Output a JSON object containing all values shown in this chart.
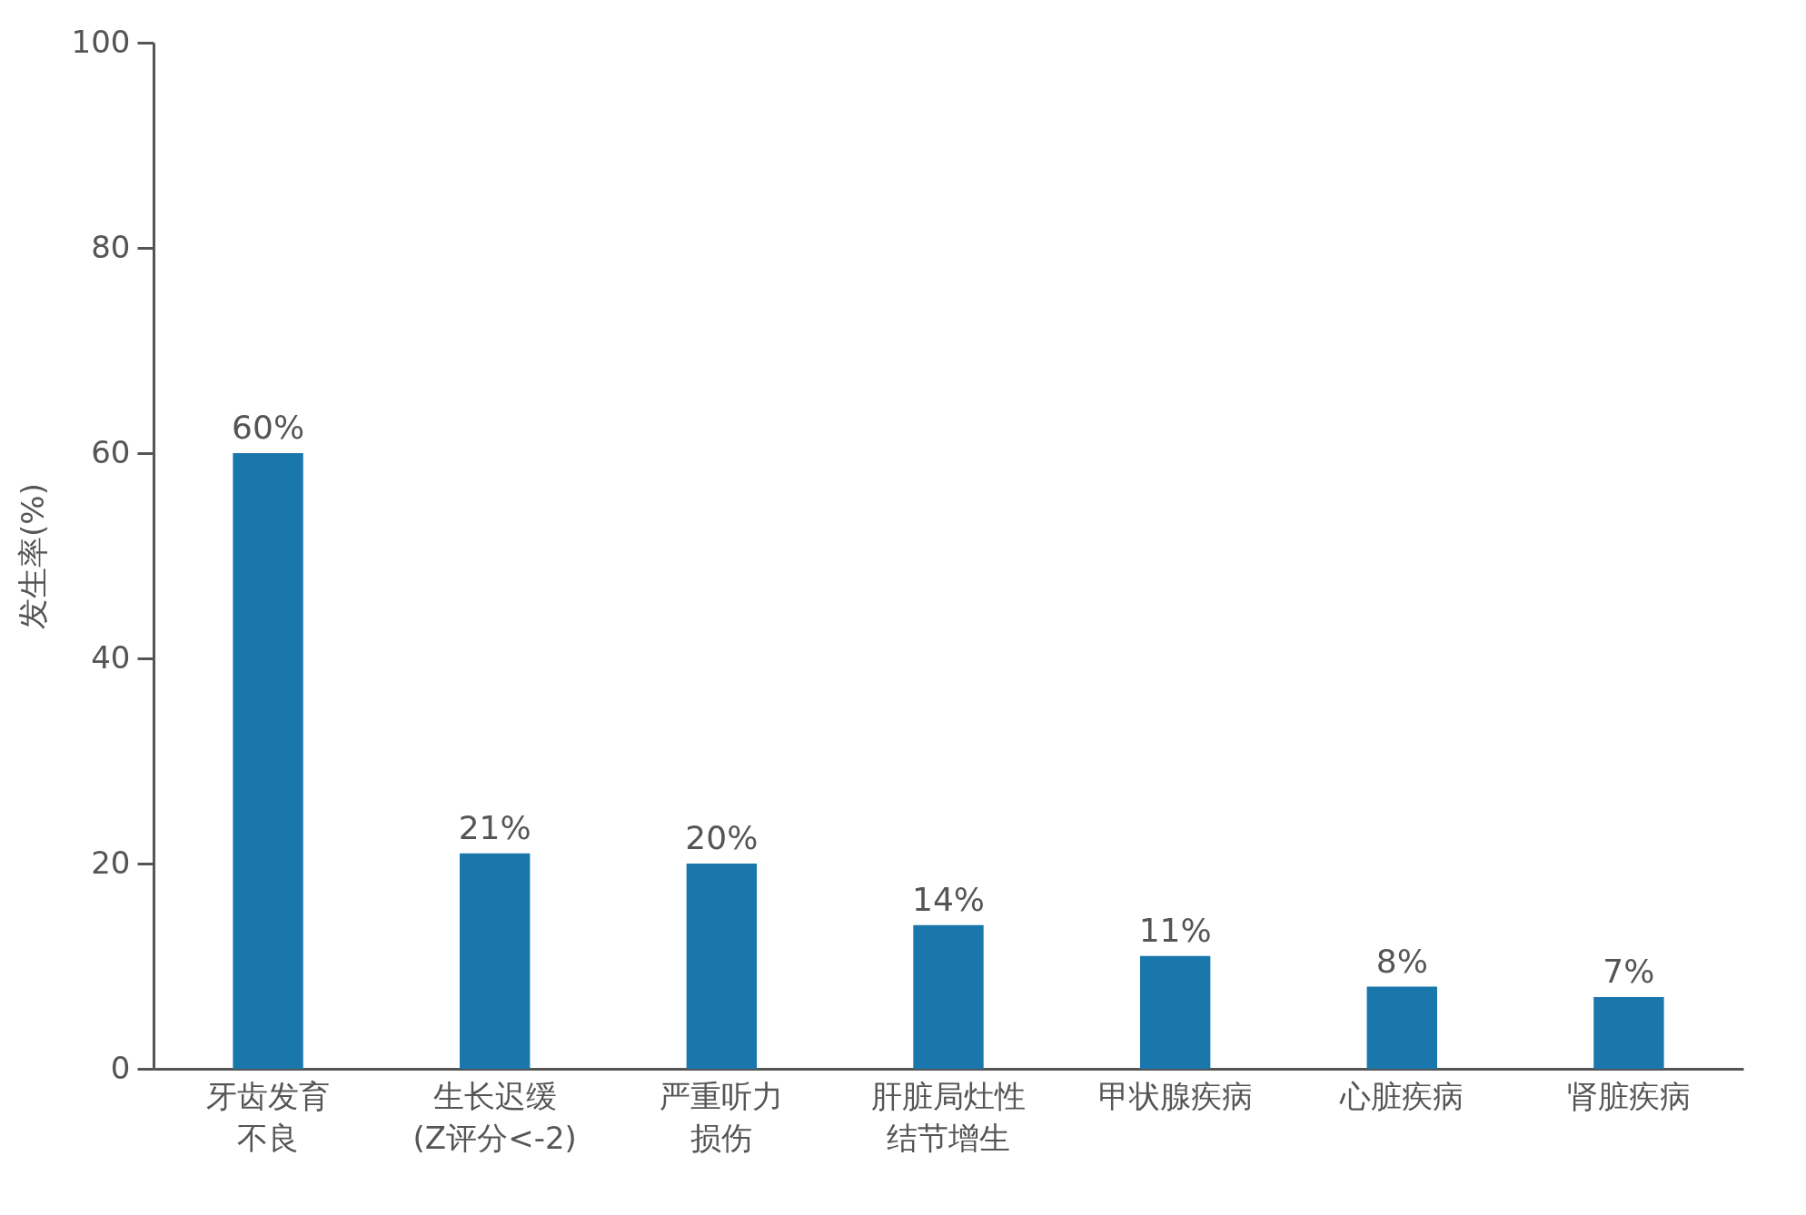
{
  "chart_data": {
    "type": "bar",
    "ylabel": "发生率(%)",
    "categories": [
      "牙齿发育不良",
      "生长迟缓(Z评分<-2)",
      "严重听力损伤",
      "肝脏局灶性结节增生",
      "甲状腺疾病",
      "心脏疾病",
      "肾脏疾病"
    ],
    "values": [
      60,
      21,
      20,
      14,
      11,
      8,
      7
    ],
    "value_labels": [
      "60%",
      "21%",
      "20%",
      "14%",
      "11%",
      "8%",
      "7%"
    ],
    "color": "#1a77ac",
    "ylim": [
      0,
      100
    ],
    "yticks": [
      0,
      20,
      40,
      60,
      80,
      100
    ],
    "grid": false
  }
}
